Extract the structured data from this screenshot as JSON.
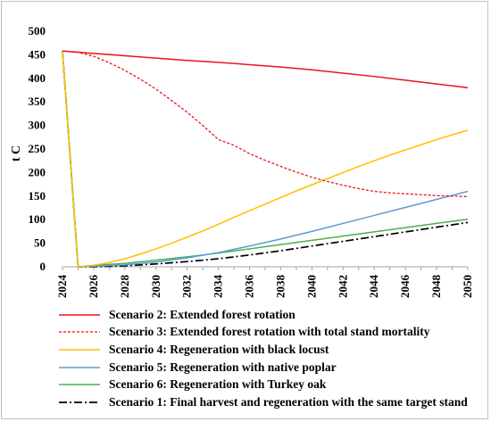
{
  "chart_data": {
    "type": "line",
    "ylabel": "t C",
    "ylim": [
      0,
      500
    ],
    "yticks": [
      0,
      50,
      100,
      150,
      200,
      250,
      300,
      350,
      400,
      450,
      500
    ],
    "xlim": [
      2024,
      2050
    ],
    "xticks": [
      "2024",
      "2026",
      "2028",
      "2030",
      "2032",
      "2034",
      "2036",
      "2038",
      "2040",
      "2042",
      "2044",
      "2046",
      "2048",
      "2050"
    ],
    "series": [
      {
        "name": "Scenario 2: Extended forest rotation",
        "color": "#e8141b",
        "dash": "solid",
        "points": [
          [
            2024,
            458
          ],
          [
            2026,
            453
          ],
          [
            2028,
            448
          ],
          [
            2030,
            443
          ],
          [
            2032,
            438
          ],
          [
            2034,
            434
          ],
          [
            2036,
            429
          ],
          [
            2038,
            424
          ],
          [
            2040,
            418
          ],
          [
            2042,
            411
          ],
          [
            2044,
            404
          ],
          [
            2046,
            396
          ],
          [
            2048,
            388
          ],
          [
            2050,
            380
          ]
        ]
      },
      {
        "name": "Scenario 3: Extended forest rotation with total stand mortality",
        "color": "#e8141b",
        "dash": "dashed",
        "points": [
          [
            2024,
            458
          ],
          [
            2025,
            455
          ],
          [
            2026,
            447
          ],
          [
            2027,
            433
          ],
          [
            2028,
            417
          ],
          [
            2029,
            398
          ],
          [
            2030,
            377
          ],
          [
            2031,
            353
          ],
          [
            2032,
            328
          ],
          [
            2033,
            300
          ],
          [
            2034,
            270
          ],
          [
            2035,
            258
          ],
          [
            2036,
            240
          ],
          [
            2037,
            226
          ],
          [
            2038,
            213
          ],
          [
            2039,
            201
          ],
          [
            2040,
            190
          ],
          [
            2041,
            181
          ],
          [
            2042,
            173
          ],
          [
            2043,
            166
          ],
          [
            2044,
            160
          ],
          [
            2045,
            157
          ],
          [
            2046,
            155
          ],
          [
            2047,
            153
          ],
          [
            2048,
            151
          ],
          [
            2049,
            150
          ],
          [
            2050,
            149
          ]
        ]
      },
      {
        "name": "Scenario 4: Regeneration with black locust",
        "color": "#ffc000",
        "dash": "solid",
        "points": [
          [
            2024,
            458
          ],
          [
            2025,
            0
          ],
          [
            2026,
            3
          ],
          [
            2027,
            9
          ],
          [
            2028,
            17
          ],
          [
            2029,
            27
          ],
          [
            2030,
            38
          ],
          [
            2031,
            50
          ],
          [
            2032,
            63
          ],
          [
            2033,
            76
          ],
          [
            2034,
            90
          ],
          [
            2035,
            105
          ],
          [
            2036,
            119
          ],
          [
            2037,
            133
          ],
          [
            2038,
            147
          ],
          [
            2039,
            161
          ],
          [
            2040,
            174
          ],
          [
            2041,
            187
          ],
          [
            2042,
            200
          ],
          [
            2043,
            213
          ],
          [
            2044,
            225
          ],
          [
            2045,
            237
          ],
          [
            2046,
            248
          ],
          [
            2047,
            259
          ],
          [
            2048,
            270
          ],
          [
            2049,
            280
          ],
          [
            2050,
            290
          ]
        ]
      },
      {
        "name": "Scenario 5: Regeneration with native poplar",
        "color": "#5b9bd5",
        "dash": "solid",
        "points": [
          [
            2024,
            458
          ],
          [
            2025,
            0
          ],
          [
            2026,
            1
          ],
          [
            2028,
            4
          ],
          [
            2030,
            10
          ],
          [
            2032,
            19
          ],
          [
            2034,
            30
          ],
          [
            2036,
            44
          ],
          [
            2038,
            59
          ],
          [
            2040,
            75
          ],
          [
            2042,
            92
          ],
          [
            2044,
            109
          ],
          [
            2046,
            126
          ],
          [
            2048,
            143
          ],
          [
            2050,
            160
          ]
        ]
      },
      {
        "name": "Scenario 6: Regeneration with Turkey oak",
        "color": "#4caf50",
        "dash": "solid",
        "points": [
          [
            2024,
            458
          ],
          [
            2025,
            0
          ],
          [
            2026,
            3
          ],
          [
            2028,
            7
          ],
          [
            2030,
            14
          ],
          [
            2032,
            21
          ],
          [
            2034,
            29
          ],
          [
            2036,
            38
          ],
          [
            2038,
            47
          ],
          [
            2040,
            56
          ],
          [
            2042,
            65
          ],
          [
            2044,
            74
          ],
          [
            2046,
            83
          ],
          [
            2048,
            92
          ],
          [
            2050,
            101
          ]
        ]
      },
      {
        "name": "Scenario 1: Final harvest and regeneration with the same target stand",
        "color": "#000000",
        "dash": "dashdot",
        "points": [
          [
            2024,
            458
          ],
          [
            2025,
            0
          ],
          [
            2026,
            0
          ],
          [
            2028,
            2
          ],
          [
            2030,
            6
          ],
          [
            2032,
            11
          ],
          [
            2034,
            17
          ],
          [
            2036,
            25
          ],
          [
            2038,
            34
          ],
          [
            2040,
            44
          ],
          [
            2042,
            54
          ],
          [
            2044,
            64
          ],
          [
            2046,
            74
          ],
          [
            2048,
            84
          ],
          [
            2050,
            94
          ]
        ]
      }
    ]
  }
}
